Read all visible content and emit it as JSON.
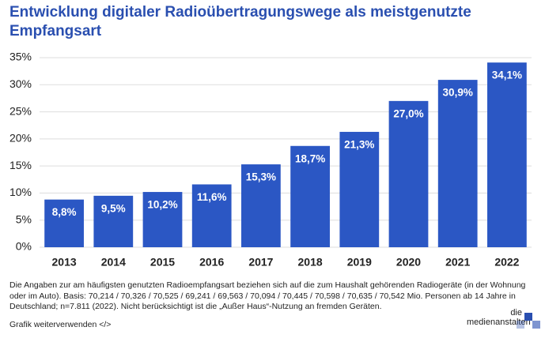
{
  "chart_data": {
    "type": "bar",
    "title": "Entwicklung digitaler Radioübertragungswege als meistgenutzte Empfangsart",
    "categories": [
      "2013",
      "2014",
      "2015",
      "2016",
      "2017",
      "2018",
      "2019",
      "2020",
      "2021",
      "2022"
    ],
    "values": [
      8.8,
      9.5,
      10.2,
      11.6,
      15.3,
      18.7,
      21.3,
      27.0,
      30.9,
      34.1
    ],
    "value_labels": [
      "8,8%",
      "9,5%",
      "10,2%",
      "11,6%",
      "15,3%",
      "18,7%",
      "21,3%",
      "27,0%",
      "30,9%",
      "34,1%"
    ],
    "color": "#2b57c4",
    "ylim": [
      0,
      35
    ],
    "yticks": [
      {
        "value": 0,
        "label": "0%"
      },
      {
        "value": 5,
        "label": "5%"
      },
      {
        "value": 10,
        "label": "10%"
      },
      {
        "value": 15,
        "label": "15%"
      },
      {
        "value": 20,
        "label": "20%"
      },
      {
        "value": 25,
        "label": "25%"
      },
      {
        "value": 30,
        "label": "30%"
      },
      {
        "value": 35,
        "label": "35%"
      }
    ],
    "grid": true,
    "footnote": "Die Angaben zur am häufigsten genutzten Radioempfangsart beziehen sich auf die zum Haushalt gehörenden Radiogeräte (in der Wohnung oder im Auto). Basis: 70,214 / 70,326 / 70,525 / 69,241 / 69,563 / 70,094 / 70,445 / 70,598 / 70,635 / 70,542 Mio. Personen ab 14 Jahre in Deutschland; n=7.811 (2022). Nicht berücksichtigt ist die „Außer Haus“-Nutzung an fremden Geräten.",
    "share_link": "Grafik weiterverwenden </>",
    "logo": [
      "die",
      "medienanstalten"
    ]
  }
}
